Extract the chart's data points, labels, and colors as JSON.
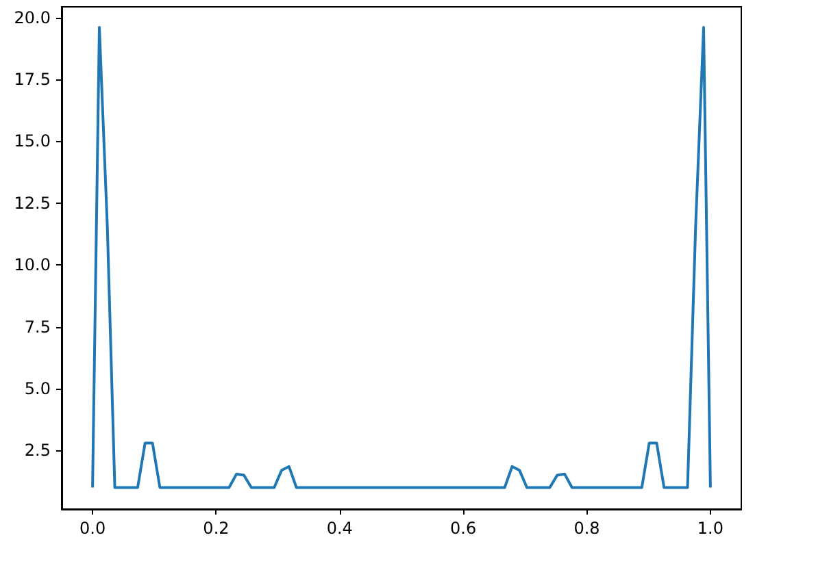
{
  "chart_data": {
    "type": "line",
    "x": [
      0,
      0.011,
      0.024,
      0.036,
      0.073,
      0.085,
      0.097,
      0.109,
      0.221,
      0.233,
      0.245,
      0.257,
      0.294,
      0.306,
      0.318,
      0.33,
      0.667,
      0.679,
      0.691,
      0.703,
      0.74,
      0.752,
      0.764,
      0.776,
      0.889,
      0.901,
      0.913,
      0.925,
      0.963,
      0.976,
      0.989,
      1
    ],
    "series": [
      {
        "color": "#1f77b4",
        "values": [
          1,
          19.6,
          11.5,
          1,
          1,
          2.8,
          2.8,
          1,
          1,
          1.55,
          1.5,
          1,
          1,
          1.7,
          1.85,
          1,
          1,
          1.85,
          1.7,
          1,
          1,
          1.5,
          1.55,
          1,
          1,
          2.8,
          2.8,
          1,
          1,
          11.5,
          19.6,
          1
        ]
      }
    ],
    "xlim": [
      -0.05,
      1.05
    ],
    "ylim": [
      0.13,
      20.43
    ],
    "xticks": [
      {
        "value": 0,
        "label": "0.0"
      },
      {
        "value": 0.2,
        "label": "0.2"
      },
      {
        "value": 0.4,
        "label": "0.4"
      },
      {
        "value": 0.6,
        "label": "0.6"
      },
      {
        "value": 0.8,
        "label": "0.8"
      },
      {
        "value": 1,
        "label": "1.0"
      }
    ],
    "yticks": [
      {
        "value": 2.5,
        "label": "2.5"
      },
      {
        "value": 5,
        "label": "5.0"
      },
      {
        "value": 7.5,
        "label": "7.5"
      },
      {
        "value": 10,
        "label": "10.0"
      },
      {
        "value": 12.5,
        "label": "12.5"
      },
      {
        "value": 15,
        "label": "15.0"
      },
      {
        "value": 17.5,
        "label": "17.5"
      },
      {
        "value": 20,
        "label": "20.0"
      }
    ],
    "grid": false,
    "marker": "none",
    "line_style": "solid"
  }
}
